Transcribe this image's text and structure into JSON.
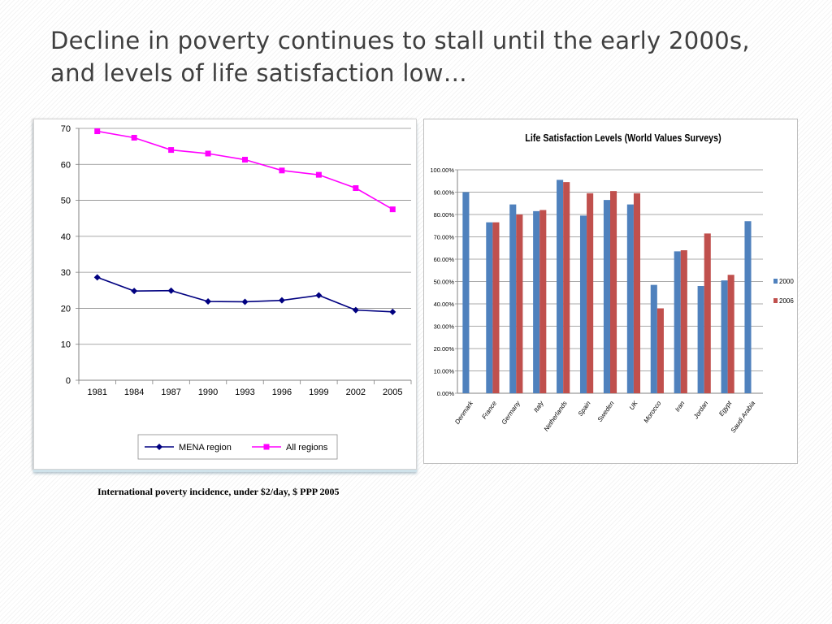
{
  "slide": {
    "title": "Decline in poverty continues to stall until the early 2000s, and levels of life satisfaction low…",
    "caption": "International poverty incidence, under $2/day, $ PPP 2005"
  },
  "chart_data": [
    {
      "type": "line",
      "title": "",
      "xlabel": "",
      "ylabel": "",
      "categories": [
        "1981",
        "1984",
        "1987",
        "1990",
        "1993",
        "1996",
        "1999",
        "2002",
        "2005"
      ],
      "ylim": [
        0,
        70
      ],
      "yticks": [
        "0",
        "10",
        "20",
        "30",
        "40",
        "50",
        "60",
        "70"
      ],
      "grid": true,
      "legend": "bottom",
      "series": [
        {
          "name": "MENA region",
          "color": "#000080",
          "marker": "diamond",
          "values": [
            28.6,
            24.8,
            24.9,
            21.9,
            21.8,
            22.2,
            23.6,
            19.5,
            19.0
          ]
        },
        {
          "name": "All regions",
          "color": "#ff00ff",
          "marker": "square",
          "values": [
            69.2,
            67.4,
            64.0,
            63.0,
            61.3,
            58.3,
            57.1,
            53.4,
            47.5
          ]
        }
      ]
    },
    {
      "type": "bar",
      "title": "Life Satisfaction  Levels (World Values Surveys)",
      "xlabel": "",
      "ylabel": "",
      "categories": [
        "Denmark",
        "France",
        "Germany",
        "Italy",
        "Netherlands",
        "Spain",
        "Sweden",
        "UK",
        "Morocco",
        "Iran",
        "Jordan",
        "Egypt",
        "Saudi Arabia"
      ],
      "ylim": [
        0,
        100
      ],
      "yticks": [
        "0.00%",
        "10.00%",
        "20.00%",
        "30.00%",
        "40.00%",
        "50.00%",
        "60.00%",
        "70.00%",
        "80.00%",
        "90.00%",
        "100.00%"
      ],
      "grid": true,
      "legend": "right",
      "series": [
        {
          "name": "2000",
          "color": "#4f81bd",
          "values": [
            90.0,
            76.5,
            84.5,
            81.5,
            95.5,
            79.5,
            86.5,
            84.5,
            48.5,
            63.5,
            48.0,
            50.5,
            77.0
          ]
        },
        {
          "name": "2006",
          "color": "#c0504d",
          "values": [
            null,
            76.5,
            80.0,
            82.0,
            94.5,
            89.5,
            90.5,
            89.5,
            38.0,
            64.0,
            71.5,
            53.0,
            null
          ]
        }
      ]
    }
  ]
}
